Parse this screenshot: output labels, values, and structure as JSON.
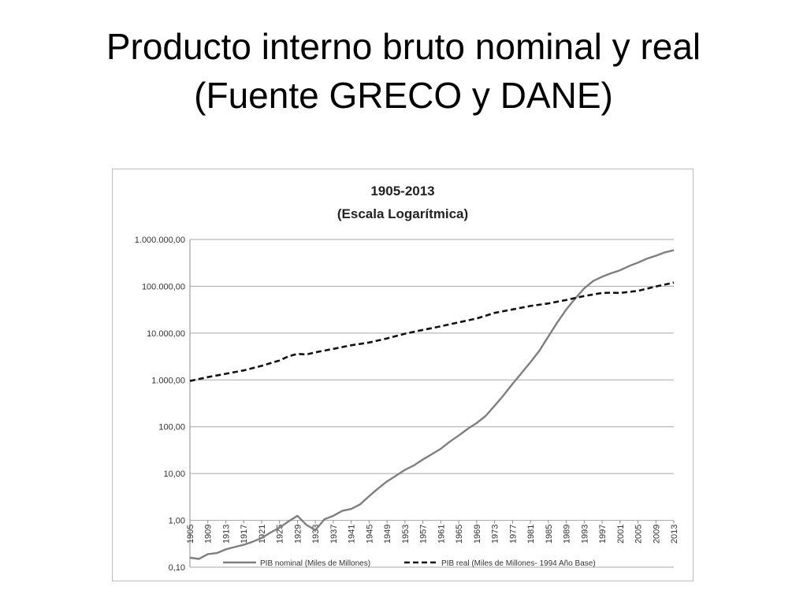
{
  "slide": {
    "title_line1": "Producto interno bruto nominal y real",
    "title_line2": "(Fuente GRECO y DANE)"
  },
  "chart_data": {
    "type": "line",
    "title": "1905-2013",
    "subtitle": "(Escala Logarítmica)",
    "xlabel": "",
    "ylabel": "",
    "y_scale": "log",
    "ylim": [
      0.1,
      1000000
    ],
    "xlim": [
      1905,
      2013
    ],
    "grid": true,
    "legend_position": "bottom",
    "y_tick_labels": [
      "0,10",
      "1,00",
      "10,00",
      "100,00",
      "1.000,00",
      "10.000,00",
      "100.000,00",
      "1.000.000,00"
    ],
    "y_tick_values": [
      0.1,
      1,
      10,
      100,
      1000,
      10000,
      100000,
      1000000
    ],
    "x_tick_labels": [
      "1905",
      "1909",
      "1913",
      "1917",
      "1921",
      "1925",
      "1929",
      "1933",
      "1937",
      "1941",
      "1945",
      "1949",
      "1953",
      "1957",
      "1961",
      "1965",
      "1969",
      "1973",
      "1977",
      "1981",
      "1985",
      "1989",
      "1993",
      "1997",
      "2001",
      "2005",
      "2009",
      "2013"
    ],
    "series": [
      {
        "name": "PIB nominal (Miles de Millones)",
        "style": "solid",
        "color": "#7f7f7f",
        "x": [
          1905,
          1907,
          1909,
          1911,
          1913,
          1915,
          1917,
          1919,
          1921,
          1923,
          1925,
          1927,
          1929,
          1931,
          1933,
          1935,
          1937,
          1939,
          1941,
          1943,
          1945,
          1947,
          1949,
          1951,
          1953,
          1955,
          1957,
          1959,
          1961,
          1963,
          1965,
          1967,
          1969,
          1971,
          1973,
          1975,
          1977,
          1979,
          1981,
          1983,
          1985,
          1987,
          1989,
          1991,
          1993,
          1995,
          1997,
          1999,
          2001,
          2003,
          2005,
          2007,
          2009,
          2011,
          2013
        ],
        "y": [
          0.16,
          0.15,
          0.19,
          0.2,
          0.24,
          0.27,
          0.3,
          0.35,
          0.42,
          0.55,
          0.7,
          0.95,
          1.25,
          0.8,
          0.62,
          1.05,
          1.25,
          1.6,
          1.75,
          2.2,
          3.3,
          4.8,
          6.8,
          9.0,
          12,
          15,
          20,
          26,
          34,
          48,
          65,
          90,
          120,
          170,
          280,
          470,
          820,
          1400,
          2400,
          4200,
          8500,
          17000,
          32000,
          55000,
          90000,
          130000,
          160000,
          190000,
          220000,
          270000,
          320000,
          390000,
          450000,
          530000,
          590000
        ]
      },
      {
        "name": "PIB real (Miles de Millones- 1994 Año Base)",
        "style": "dashed",
        "color": "#111111",
        "x": [
          1905,
          1909,
          1913,
          1917,
          1921,
          1925,
          1927,
          1929,
          1931,
          1933,
          1937,
          1941,
          1945,
          1949,
          1953,
          1957,
          1961,
          1965,
          1969,
          1973,
          1977,
          1981,
          1985,
          1989,
          1993,
          1997,
          1999,
          2001,
          2005,
          2009,
          2013
        ],
        "y": [
          950,
          1150,
          1350,
          1600,
          2000,
          2600,
          3200,
          3600,
          3500,
          3900,
          4600,
          5500,
          6300,
          7700,
          9700,
          11700,
          14000,
          17000,
          20500,
          27000,
          32000,
          38000,
          43000,
          51000,
          62000,
          72000,
          73000,
          72000,
          80000,
          99000,
          120000
        ]
      }
    ]
  }
}
